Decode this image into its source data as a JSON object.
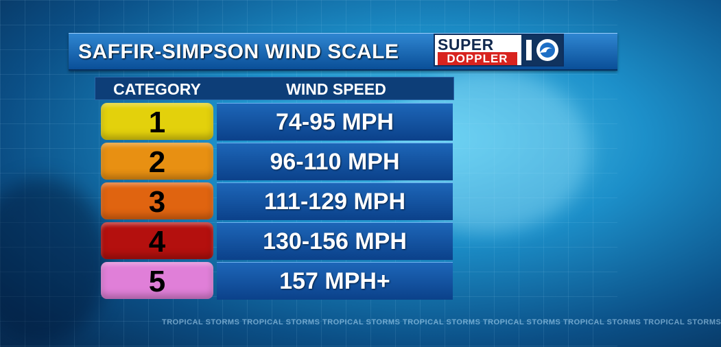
{
  "header": {
    "title": "SAFFIR-SIMPSON WIND SCALE",
    "logo": {
      "line1": "SUPER",
      "line2": "DOPPLER",
      "number": "10"
    }
  },
  "table": {
    "col_category": "CATEGORY",
    "col_wind": "WIND SPEED",
    "rows": [
      {
        "category": "1",
        "speed": "74-95 MPH",
        "color": "#e3d10c"
      },
      {
        "category": "2",
        "speed": "96-110 MPH",
        "color": "#e89012"
      },
      {
        "category": "3",
        "speed": "111-129 MPH",
        "color": "#e06410"
      },
      {
        "category": "4",
        "speed": "130-156 MPH",
        "color": "#b4100e"
      },
      {
        "category": "5",
        "speed": "157 MPH+",
        "color": "#e07fd8"
      }
    ]
  },
  "footer": {
    "ticker": "TROPICAL STORMS  TROPICAL STORMS  TROPICAL STORMS  TROPICAL STORMS  TROPICAL STORMS  TROPICAL STORMS  TROPICAL STORMS"
  }
}
